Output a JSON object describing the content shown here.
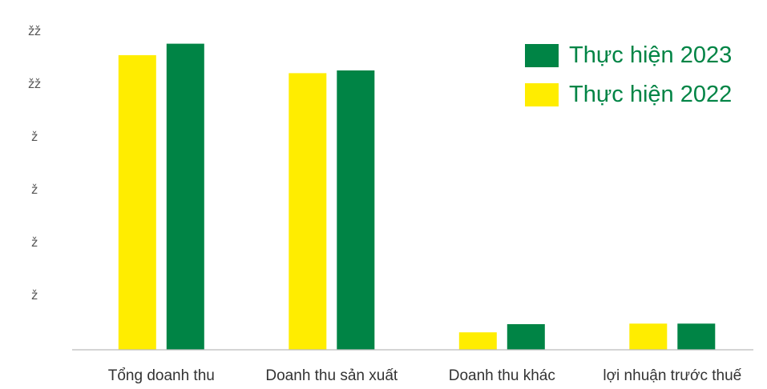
{
  "chart_data": {
    "type": "bar",
    "categories": [
      "Tổng doanh thu",
      "Doanh thu sản xuất",
      "Doanh thu khác",
      "lợi nhuận trước thuế"
    ],
    "series": [
      {
        "name": "Thực hiện 2022",
        "color": "#FFED00",
        "values": [
          54.0,
          50.7,
          3.2,
          4.8
        ]
      },
      {
        "name": "Thực hiện 2023",
        "color": "#008445",
        "values": [
          56.1,
          51.2,
          4.7,
          4.8
        ]
      }
    ],
    "y_tick_labels": [
      "ž",
      "ž",
      "ž",
      "ž",
      "žž",
      "žž"
    ],
    "ylim": [
      0,
      60
    ],
    "grid": false,
    "legend_position": "top-right",
    "legend_text_color": "#008445",
    "axis_color": "#bbbbbb"
  }
}
